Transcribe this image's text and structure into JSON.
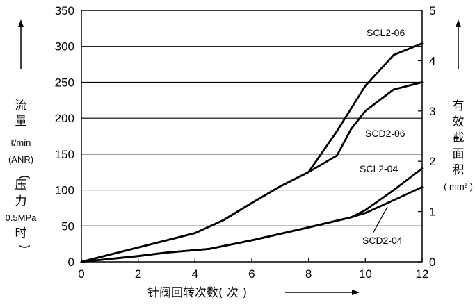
{
  "chart_data": {
    "type": "line",
    "xlabel": "针阀回转次数( 次 )",
    "ylabel": {
      "line1": "流",
      "line2": "量",
      "unit": "ℓ/min",
      "ref": "(ANR)",
      "paren_open": "(",
      "cond1": "压",
      "cond2": "力",
      "pressure": "0.5MPa",
      "cond3": "时",
      "paren_close": ")"
    },
    "y2label": {
      "c1": "有",
      "c2": "效",
      "c3": "截",
      "c4": "面",
      "c5": "积",
      "unit": "( mm² )"
    },
    "xlim": [
      0,
      12
    ],
    "ylim": [
      0,
      350
    ],
    "y2lim": [
      0,
      5
    ],
    "x_ticks": [
      "0",
      "2",
      "4",
      "6",
      "8",
      "10",
      "12"
    ],
    "y_ticks": [
      "0",
      "50",
      "100",
      "150",
      "200",
      "250",
      "300",
      "350"
    ],
    "y2_ticks": [
      "0",
      "1",
      "2",
      "3",
      "4",
      "5"
    ],
    "grid": "horizontal",
    "series": [
      {
        "name": "SCL2-06",
        "points": [
          [
            0,
            0
          ],
          [
            2,
            20
          ],
          [
            4,
            40
          ],
          [
            5,
            58
          ],
          [
            6,
            82
          ],
          [
            7,
            105
          ],
          [
            8,
            125
          ],
          [
            9,
            182
          ],
          [
            10,
            245
          ],
          [
            11,
            288
          ],
          [
            12,
            304
          ]
        ]
      },
      {
        "name": "SCD2-06",
        "points": [
          [
            0,
            0
          ],
          [
            2,
            20
          ],
          [
            4,
            40
          ],
          [
            5,
            58
          ],
          [
            6,
            82
          ],
          [
            7,
            105
          ],
          [
            8,
            125
          ],
          [
            9,
            148
          ],
          [
            9.5,
            185
          ],
          [
            10,
            210
          ],
          [
            11,
            240
          ],
          [
            12,
            250
          ]
        ]
      },
      {
        "name": "SCL2-04",
        "points": [
          [
            0,
            0
          ],
          [
            2,
            8
          ],
          [
            3,
            13
          ],
          [
            4.5,
            18
          ],
          [
            6,
            30
          ],
          [
            8,
            48
          ],
          [
            9.5,
            62
          ],
          [
            10,
            72
          ],
          [
            11,
            100
          ],
          [
            12,
            130
          ]
        ]
      },
      {
        "name": "SCD2-04",
        "points": [
          [
            0,
            0
          ],
          [
            2,
            8
          ],
          [
            3,
            13
          ],
          [
            4.5,
            18
          ],
          [
            6,
            30
          ],
          [
            8,
            48
          ],
          [
            9.5,
            62
          ],
          [
            10,
            68
          ],
          [
            11,
            86
          ],
          [
            12,
            104
          ]
        ]
      }
    ]
  }
}
